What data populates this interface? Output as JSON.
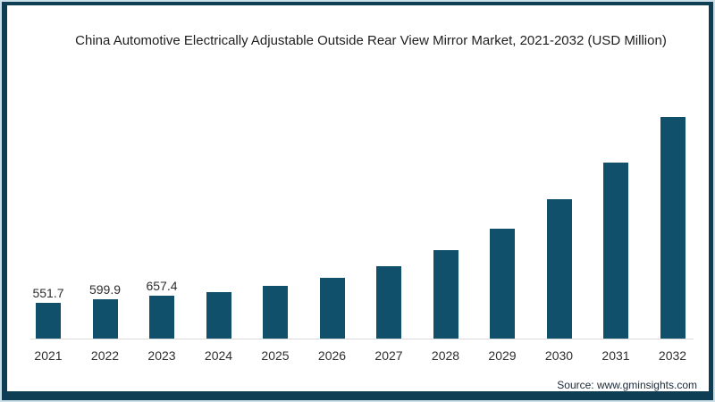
{
  "title": "China Automotive Electrically Adjustable Outside Rear View Mirror Market, 2021-2032 (USD Million)",
  "source": "Source: www.gminsights.com",
  "colors": {
    "bar": "#11506b",
    "frame_border": "#0d3e54",
    "frame_edge": "#cce0ea",
    "axis_line": "#dcdcdc"
  },
  "chart_data": {
    "type": "bar",
    "title": "China Automotive Electrically Adjustable Outside Rear View Mirror Market, 2021-2032 (USD Million)",
    "xlabel": "",
    "ylabel": "USD Million",
    "ylim": [
      0,
      3500
    ],
    "grid": false,
    "legend": false,
    "categories": [
      "2021",
      "2022",
      "2023",
      "2024",
      "2025",
      "2026",
      "2027",
      "2028",
      "2029",
      "2030",
      "2031",
      "2032"
    ],
    "values": [
      551.7,
      599.9,
      657.4,
      715,
      810,
      930,
      1115,
      1355,
      1695,
      2135,
      2700,
      3400
    ],
    "value_labels": [
      "551.7",
      "599.9",
      "657.4",
      "",
      "",
      "",
      "",
      "",
      "",
      "",
      "",
      ""
    ]
  }
}
